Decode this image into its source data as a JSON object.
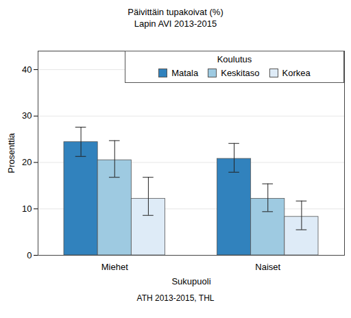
{
  "chart_data": {
    "type": "bar",
    "title": "Päivittäin tupakoivat (%)",
    "subtitle": "Lapin AVI 2013-2015",
    "caption": "ATH 2013-2015, THL",
    "x_label": "Sukupuoli",
    "y_label": "Prosenttia",
    "legend_title": "Koulutus",
    "categories": [
      "Miehet",
      "Naiset"
    ],
    "series": [
      {
        "name": "Matala",
        "color": "#3182bd",
        "values": [
          24.4,
          20.8
        ],
        "lower": [
          21.3,
          17.9
        ],
        "upper": [
          27.6,
          24.1
        ]
      },
      {
        "name": "Keskitaso",
        "color": "#9ecae1",
        "values": [
          20.5,
          12.2
        ],
        "lower": [
          16.8,
          9.4
        ],
        "upper": [
          24.7,
          15.4
        ]
      },
      {
        "name": "Korkea",
        "color": "#deebf7",
        "values": [
          12.2,
          8.3
        ],
        "lower": [
          8.6,
          5.5
        ],
        "upper": [
          16.8,
          11.7
        ]
      }
    ],
    "ylim": [
      0,
      44
    ],
    "yticks": [
      0,
      10,
      20,
      30,
      40
    ],
    "grid": true,
    "legend": "top-right"
  }
}
